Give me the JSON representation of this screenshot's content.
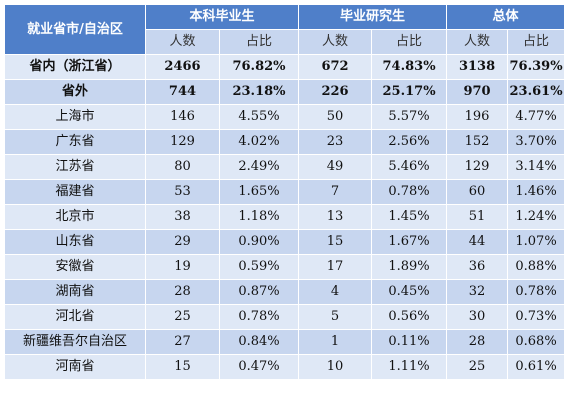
{
  "header": {
    "region_label": "就业省市/自治区",
    "groups": [
      "本科毕业生",
      "毕业研究生",
      "总体"
    ],
    "sub": [
      "人数",
      "占比"
    ]
  },
  "rows": [
    {
      "label": "省内（浙江省）",
      "bold": true,
      "v": [
        "2466",
        "76.82%",
        "672",
        "74.83%",
        "3138",
        "76.39%"
      ]
    },
    {
      "label": "省外",
      "bold": true,
      "v": [
        "744",
        "23.18%",
        "226",
        "25.17%",
        "970",
        "23.61%"
      ]
    },
    {
      "label": "上海市",
      "v": [
        "146",
        "4.55%",
        "50",
        "5.57%",
        "196",
        "4.77%"
      ]
    },
    {
      "label": "广东省",
      "v": [
        "129",
        "4.02%",
        "23",
        "2.56%",
        "152",
        "3.70%"
      ]
    },
    {
      "label": "江苏省",
      "v": [
        "80",
        "2.49%",
        "49",
        "5.46%",
        "129",
        "3.14%"
      ]
    },
    {
      "label": "福建省",
      "v": [
        "53",
        "1.65%",
        "7",
        "0.78%",
        "60",
        "1.46%"
      ]
    },
    {
      "label": "北京市",
      "v": [
        "38",
        "1.18%",
        "13",
        "1.45%",
        "51",
        "1.24%"
      ]
    },
    {
      "label": "山东省",
      "v": [
        "29",
        "0.90%",
        "15",
        "1.67%",
        "44",
        "1.07%"
      ]
    },
    {
      "label": "安徽省",
      "v": [
        "19",
        "0.59%",
        "17",
        "1.89%",
        "36",
        "0.88%"
      ]
    },
    {
      "label": "湖南省",
      "v": [
        "28",
        "0.87%",
        "4",
        "0.45%",
        "32",
        "0.78%"
      ]
    },
    {
      "label": "河北省",
      "v": [
        "25",
        "0.78%",
        "5",
        "0.56%",
        "30",
        "0.73%"
      ]
    },
    {
      "label": "新疆维吾尔自治区",
      "v": [
        "27",
        "0.84%",
        "1",
        "0.11%",
        "28",
        "0.68%"
      ]
    },
    {
      "label": "河南省",
      "v": [
        "15",
        "0.47%",
        "10",
        "1.11%",
        "25",
        "0.61%"
      ]
    }
  ],
  "colors": {
    "header": "#4f7fc9",
    "row_light": "#dfe8f6",
    "row_dark": "#c7d6ef"
  }
}
